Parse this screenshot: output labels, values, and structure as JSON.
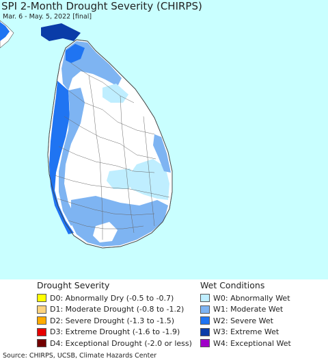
{
  "title": "SPI 2-Month Drought Severity (CHIRPS)",
  "subtitle": "Mar. 6 - May. 5, 2022 [final]",
  "legend": {
    "drought_title": "Drought Severity",
    "drought_items": [
      {
        "label": "D0: Abnormally Dry (-0.5 to -0.7)",
        "color": "#ffff00"
      },
      {
        "label": "D1: Moderate Drought (-0.8 to -1.2)",
        "color": "#fcd37f"
      },
      {
        "label": "D2: Severe Drought (-1.3 to -1.5)",
        "color": "#ffaa00"
      },
      {
        "label": "D3: Extreme Drought (-1.6 to -1.9)",
        "color": "#e60000"
      },
      {
        "label": "D4: Exceptional Drought (-2.0 or less)",
        "color": "#730000"
      }
    ],
    "wet_title": "Wet Conditions",
    "wet_items": [
      {
        "label": "W0: Abnormally Wet",
        "color": "#bfeeff"
      },
      {
        "label": "W1: Moderate Wet",
        "color": "#7eb4f2"
      },
      {
        "label": "W2: Severe Wet",
        "color": "#1f74f2"
      },
      {
        "label": "W3: Extreme Wet",
        "color": "#0a3ca8"
      },
      {
        "label": "W4: Exceptional Wet",
        "color": "#a000c8"
      }
    ]
  },
  "source": "Source: CHIRPS, UCSB, Climate Hazards Center",
  "colors": {
    "ocean": "#c9ffff",
    "land_normal": "#ffffff",
    "boundary": "#555555"
  }
}
